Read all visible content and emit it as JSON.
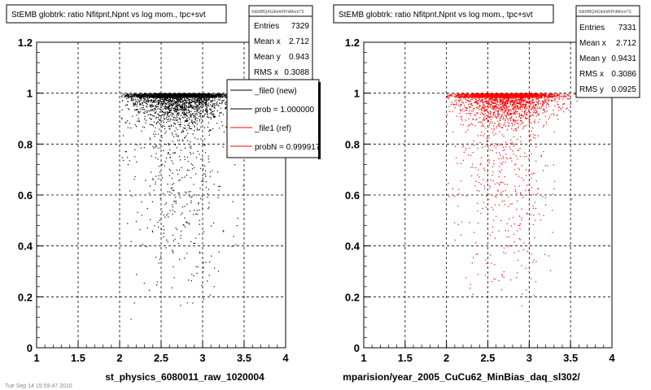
{
  "chart_data": [
    {
      "type": "scatter",
      "title": "StEMB globtrk: ratio Nfitpnt,Npnt vs log mom., tpc+svt",
      "stats_header": "StEMBQAGlbtrkRPntMomTS",
      "stats": [
        {
          "label": "Entries",
          "value": "7329"
        },
        {
          "label": "Mean x",
          "value": "2.712"
        },
        {
          "label": "Mean y",
          "value": "0.943"
        },
        {
          "label": "RMS x",
          "value": "0.3088"
        }
      ],
      "legend": [
        {
          "label": "_file0 (new)",
          "color": "#000000"
        },
        {
          "label": "prob = 1.000000",
          "color": "#000000"
        },
        {
          "label": "_file1 (ref)",
          "color": "#ff0000"
        },
        {
          "label": "probN = 0.999917",
          "color": "#ff0000"
        }
      ],
      "xlabel": "st_physics_6080011_raw_1020004",
      "ylabel": "",
      "xlim": [
        1,
        4
      ],
      "ylim": [
        0,
        1.2
      ],
      "xticks": [
        "1",
        "1.5",
        "2",
        "2.5",
        "3",
        "3.5",
        "4"
      ],
      "yticks": [
        "0",
        "0.2",
        "0.4",
        "0.6",
        "0.8",
        "1",
        "1.2"
      ],
      "grid": true,
      "legend_position": "right",
      "marker_color": "#000000",
      "summary": {
        "x_range": [
          2.0,
          3.6
        ],
        "y_band": [
          0.85,
          1.0
        ],
        "n_points_shown": 3200
      }
    },
    {
      "type": "scatter",
      "title": "StEMB globtrk: ratio Nfitpnt,Npnt vs log mom., tpc+svt",
      "stats_header": "StEMBQAGlbtrkRPntMomTS",
      "stats": [
        {
          "label": "Entries",
          "value": "7331"
        },
        {
          "label": "Mean x",
          "value": "2.712"
        },
        {
          "label": "Mean y",
          "value": "0.9431"
        },
        {
          "label": "RMS x",
          "value": "0.3086"
        },
        {
          "label": "RMS y",
          "value": "0.0925"
        }
      ],
      "xlabel": "mparision/year_2005_CuCu62_MinBias_daq_sl302/",
      "ylabel": "",
      "xlim": [
        1,
        4
      ],
      "ylim": [
        0,
        1.2
      ],
      "xticks": [
        "1",
        "1.5",
        "2",
        "2.5",
        "3",
        "3.5",
        "4"
      ],
      "yticks": [
        "0",
        "0.2",
        "0.4",
        "0.6",
        "0.8",
        "1",
        "1.2"
      ],
      "grid": true,
      "marker_color": "#ff0000",
      "summary": {
        "x_range": [
          2.0,
          3.6
        ],
        "y_band": [
          0.85,
          1.0
        ],
        "n_points_shown": 3200
      }
    }
  ],
  "footer_text": "Tue Sep 14 15:59:47 2010"
}
